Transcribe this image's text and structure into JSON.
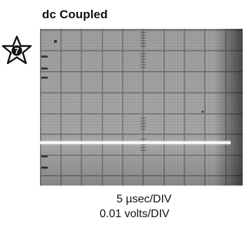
{
  "figure": {
    "title": "dc Coupled",
    "badge_number": "7",
    "time_base": "5 µsec/DIV",
    "volts_scale": "0.01 volts/DIV"
  },
  "icons": {
    "badge": "star-badge-icon"
  },
  "colors": {
    "trace": "#ffffff",
    "graticule_background": "#a9a9a9"
  }
}
